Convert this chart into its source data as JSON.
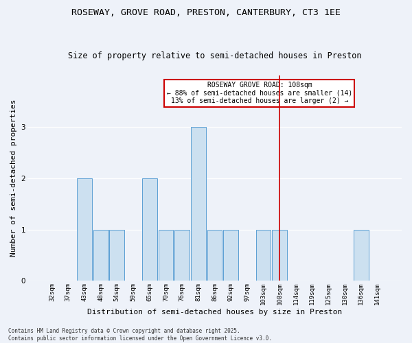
{
  "title_line1": "ROSEWAY, GROVE ROAD, PRESTON, CANTERBURY, CT3 1EE",
  "title_line2": "Size of property relative to semi-detached houses in Preston",
  "xlabel": "Distribution of semi-detached houses by size in Preston",
  "ylabel": "Number of semi-detached properties",
  "categories": [
    "32sqm",
    "37sqm",
    "43sqm",
    "48sqm",
    "54sqm",
    "59sqm",
    "65sqm",
    "70sqm",
    "76sqm",
    "81sqm",
    "86sqm",
    "92sqm",
    "97sqm",
    "103sqm",
    "108sqm",
    "114sqm",
    "119sqm",
    "125sqm",
    "130sqm",
    "136sqm",
    "141sqm"
  ],
  "values": [
    0,
    0,
    2,
    1,
    1,
    0,
    2,
    1,
    1,
    3,
    1,
    1,
    0,
    1,
    1,
    0,
    0,
    0,
    0,
    1,
    0
  ],
  "bar_color": "#cce0f0",
  "bar_edge_color": "#5b9fd4",
  "highlight_index": 14,
  "highlight_line_color": "#cc0000",
  "annotation_text": "ROSEWAY GROVE ROAD: 108sqm\n← 88% of semi-detached houses are smaller (14)\n13% of semi-detached houses are larger (2) →",
  "annotation_box_edge": "#cc0000",
  "annotation_box_face": "#ffffff",
  "ylim": [
    0,
    4
  ],
  "yticks": [
    0,
    1,
    2,
    3
  ],
  "background_color": "#eef2f9",
  "footer_text": "Contains HM Land Registry data © Crown copyright and database right 2025.\nContains public sector information licensed under the Open Government Licence v3.0.",
  "title_fontsize": 9.5,
  "subtitle_fontsize": 8.5,
  "xlabel_fontsize": 8,
  "ylabel_fontsize": 8,
  "tick_fontsize": 6.5,
  "annotation_fontsize": 7,
  "footer_fontsize": 5.5
}
